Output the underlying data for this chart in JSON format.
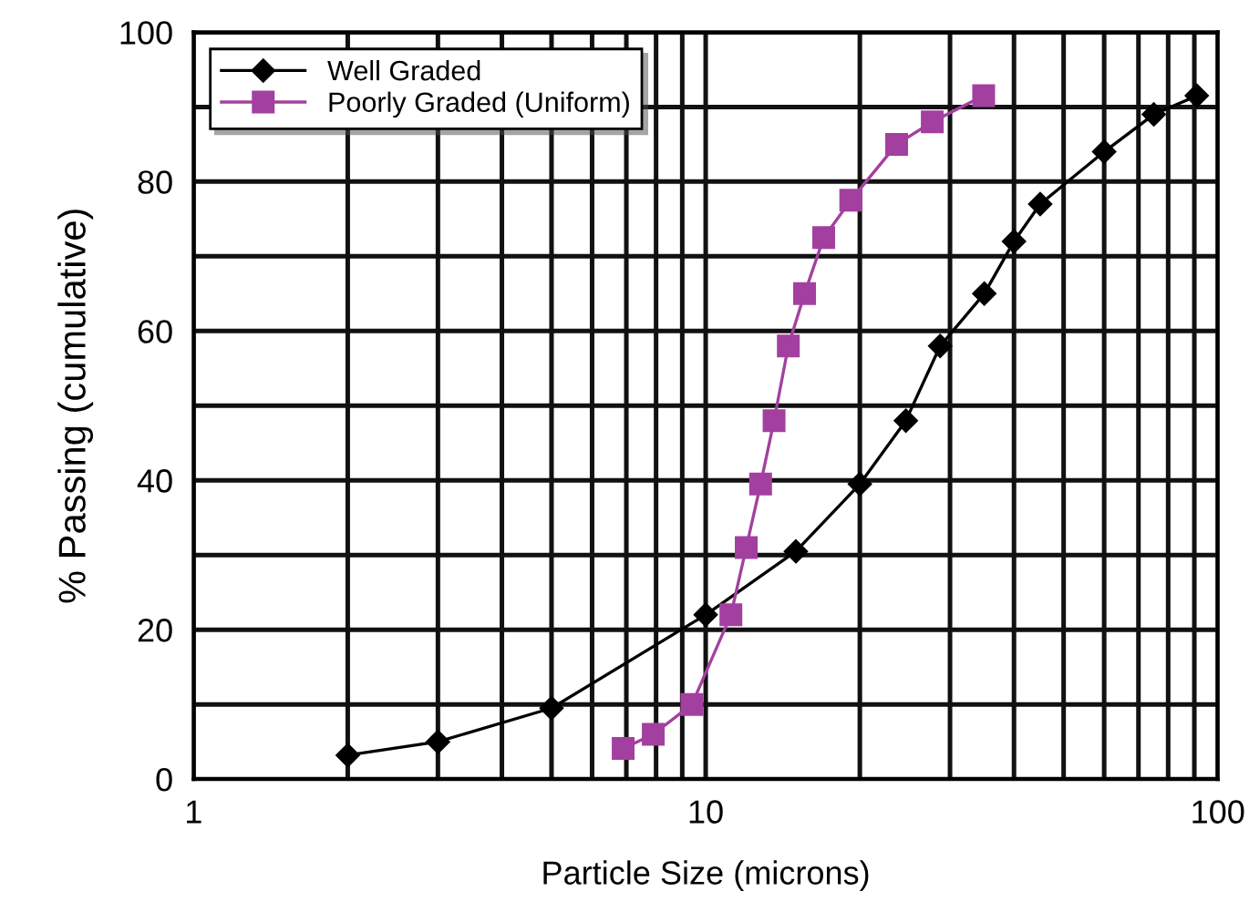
{
  "chart_data": {
    "type": "line",
    "xlabel": "Particle Size (microns)",
    "ylabel": "% Passing (cumulative)",
    "log": "x",
    "xlim": [
      1,
      100
    ],
    "ylim": [
      0,
      100
    ],
    "xticks": [
      1,
      {
        "value": 2,
        "label": null
      },
      {
        "value": 3,
        "label": null
      },
      {
        "value": 4,
        "label": null
      },
      {
        "value": 5,
        "label": null
      },
      {
        "value": 6,
        "label": null
      },
      {
        "value": 7,
        "label": null
      },
      {
        "value": 8,
        "label": null
      },
      {
        "value": 9,
        "label": null
      },
      10,
      {
        "value": 20,
        "label": null
      },
      {
        "value": 30,
        "label": null
      },
      {
        "value": 40,
        "label": null
      },
      {
        "value": 50,
        "label": null
      },
      {
        "value": 60,
        "label": null
      },
      {
        "value": 70,
        "label": null
      },
      {
        "value": 80,
        "label": null
      },
      {
        "value": 90,
        "label": null
      },
      100
    ],
    "yticks": [
      0,
      {
        "value": 10,
        "label": null
      },
      20,
      {
        "value": 30,
        "label": null
      },
      40,
      {
        "value": 50,
        "label": null
      },
      60,
      {
        "value": 70,
        "label": null
      },
      80,
      {
        "value": 90,
        "label": null
      },
      100
    ],
    "grid": true,
    "legend": "top left",
    "series": [
      {
        "name": "Well Graded",
        "color": "#000000",
        "marker": "diamond",
        "x": [
          2,
          3,
          5,
          10,
          15,
          20,
          24.6,
          28.7,
          35,
          40,
          45,
          60,
          75,
          91
        ],
        "values": [
          3.2,
          5,
          9.5,
          22,
          30.5,
          39.5,
          48,
          58,
          65,
          72,
          77,
          84,
          89,
          91.5
        ]
      },
      {
        "name": "Poorly Graded (Uniform)",
        "color": "#a3409f",
        "marker": "square",
        "x": [
          6.9,
          7.9,
          9.4,
          11.2,
          12,
          12.8,
          13.6,
          14.5,
          15.6,
          17,
          19.2,
          23.6,
          27.7,
          34.9
        ],
        "values": [
          4.1,
          6,
          10,
          22,
          31,
          39.5,
          48,
          58,
          65,
          72.5,
          77.5,
          85,
          88,
          91.5
        ]
      }
    ]
  }
}
